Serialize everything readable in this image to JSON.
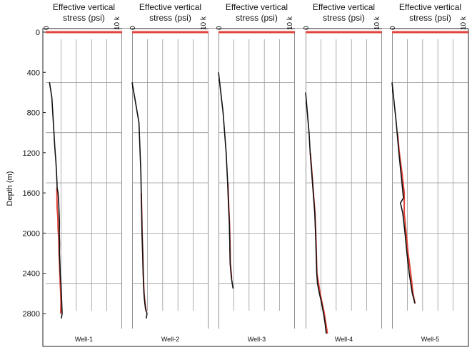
{
  "chart_data": {
    "type": "line",
    "ylabel": "Depth (m)",
    "y_ticks": [
      "0",
      "400",
      "800",
      "1200",
      "1600",
      "2000",
      "2400",
      "2800"
    ],
    "ylim": [
      0,
      2950
    ],
    "xlim": [
      0,
      10000
    ],
    "x_ticks": [
      "0",
      "10 k"
    ],
    "panel_title": "Effective vertical stress (psi)",
    "series_colors": {
      "black": "#111111",
      "red": "#e0443a"
    },
    "panels": [
      {
        "name": "Well-1",
        "black": [
          [
            500,
            500
          ],
          [
            650,
            800
          ],
          [
            900,
            1000
          ],
          [
            1150,
            1200
          ],
          [
            1300,
            1350
          ],
          [
            1450,
            1450
          ],
          [
            1500,
            1480
          ],
          [
            1550,
            1500
          ],
          [
            1600,
            1620
          ],
          [
            1700,
            1700
          ],
          [
            1800,
            1760
          ],
          [
            1900,
            1800
          ],
          [
            2000,
            1780
          ],
          [
            2100,
            1820
          ],
          [
            2200,
            1800
          ],
          [
            2300,
            1860
          ],
          [
            2400,
            1900
          ],
          [
            2500,
            2000
          ],
          [
            2600,
            2050
          ],
          [
            2700,
            2100
          ],
          [
            2800,
            2150
          ],
          [
            2850,
            2050
          ]
        ],
        "red": [
          [
            1550,
            1450
          ],
          [
            1650,
            1480
          ],
          [
            1750,
            1500
          ],
          [
            1850,
            1600
          ],
          [
            1950,
            1620
          ],
          [
            2050,
            1700
          ],
          [
            2200,
            1750
          ],
          [
            2300,
            1800
          ],
          [
            2400,
            1850
          ],
          [
            2500,
            1900
          ],
          [
            2600,
            1960
          ],
          [
            2700,
            2000
          ],
          [
            2800,
            1950
          ]
        ]
      },
      {
        "name": "Well-2",
        "black": [
          [
            500,
            0
          ],
          [
            900,
            900
          ],
          [
            1200,
            1050
          ],
          [
            1400,
            1150
          ],
          [
            1600,
            1200
          ],
          [
            1800,
            1250
          ],
          [
            2000,
            1300
          ],
          [
            2200,
            1380
          ],
          [
            2400,
            1450
          ],
          [
            2550,
            1520
          ],
          [
            2650,
            1600
          ],
          [
            2750,
            1750
          ],
          [
            2800,
            1950
          ],
          [
            2850,
            1850
          ]
        ],
        "red": [
          [
            1600,
            1200
          ],
          [
            1800,
            1260
          ],
          [
            2000,
            1310
          ],
          [
            2200,
            1390
          ],
          [
            2400,
            1460
          ],
          [
            2600,
            1560
          ],
          [
            2700,
            1700
          ],
          [
            2780,
            1820
          ]
        ]
      },
      {
        "name": "Well-3",
        "black": [
          [
            400,
            0
          ],
          [
            800,
            600
          ],
          [
            1200,
            1000
          ],
          [
            1500,
            1200
          ],
          [
            1700,
            1300
          ],
          [
            1900,
            1420
          ],
          [
            2100,
            1480
          ],
          [
            2300,
            1520
          ],
          [
            2450,
            1700
          ],
          [
            2550,
            1900
          ]
        ],
        "red": [
          [
            1500,
            1230
          ],
          [
            1700,
            1320
          ],
          [
            1900,
            1440
          ],
          [
            2100,
            1500
          ],
          [
            2300,
            1540
          ],
          [
            2450,
            1720
          ]
        ]
      },
      {
        "name": "Well-4",
        "black": [
          [
            600,
            0
          ],
          [
            1000,
            450
          ],
          [
            1200,
            600
          ],
          [
            1400,
            800
          ],
          [
            1600,
            1000
          ],
          [
            1800,
            1200
          ],
          [
            2000,
            1300
          ],
          [
            2200,
            1380
          ],
          [
            2400,
            1460
          ],
          [
            2500,
            1550
          ],
          [
            2600,
            1800
          ],
          [
            2700,
            2100
          ],
          [
            2800,
            2350
          ],
          [
            2900,
            2550
          ],
          [
            3000,
            2700
          ]
        ],
        "red": [
          [
            1200,
            620
          ],
          [
            1400,
            820
          ],
          [
            1600,
            1020
          ],
          [
            1800,
            1220
          ],
          [
            2000,
            1330
          ],
          [
            2200,
            1400
          ],
          [
            2400,
            1480
          ],
          [
            2600,
            1900
          ],
          [
            2800,
            2450
          ],
          [
            3000,
            2850
          ]
        ]
      },
      {
        "name": "Well-5",
        "black": [
          [
            500,
            0
          ],
          [
            900,
            550
          ],
          [
            1200,
            900
          ],
          [
            1500,
            1300
          ],
          [
            1650,
            1500
          ],
          [
            1700,
            1100
          ],
          [
            1800,
            1400
          ],
          [
            2000,
            1700
          ],
          [
            2200,
            1950
          ],
          [
            2400,
            2250
          ],
          [
            2600,
            2650
          ],
          [
            2700,
            3000
          ]
        ],
        "red": [
          [
            1000,
            700
          ],
          [
            1200,
            950
          ],
          [
            1400,
            1300
          ],
          [
            1600,
            1600
          ],
          [
            1800,
            1600
          ],
          [
            2000,
            1850
          ],
          [
            2200,
            2100
          ],
          [
            2400,
            2450
          ],
          [
            2600,
            2750
          ],
          [
            2700,
            3000
          ]
        ]
      }
    ]
  }
}
